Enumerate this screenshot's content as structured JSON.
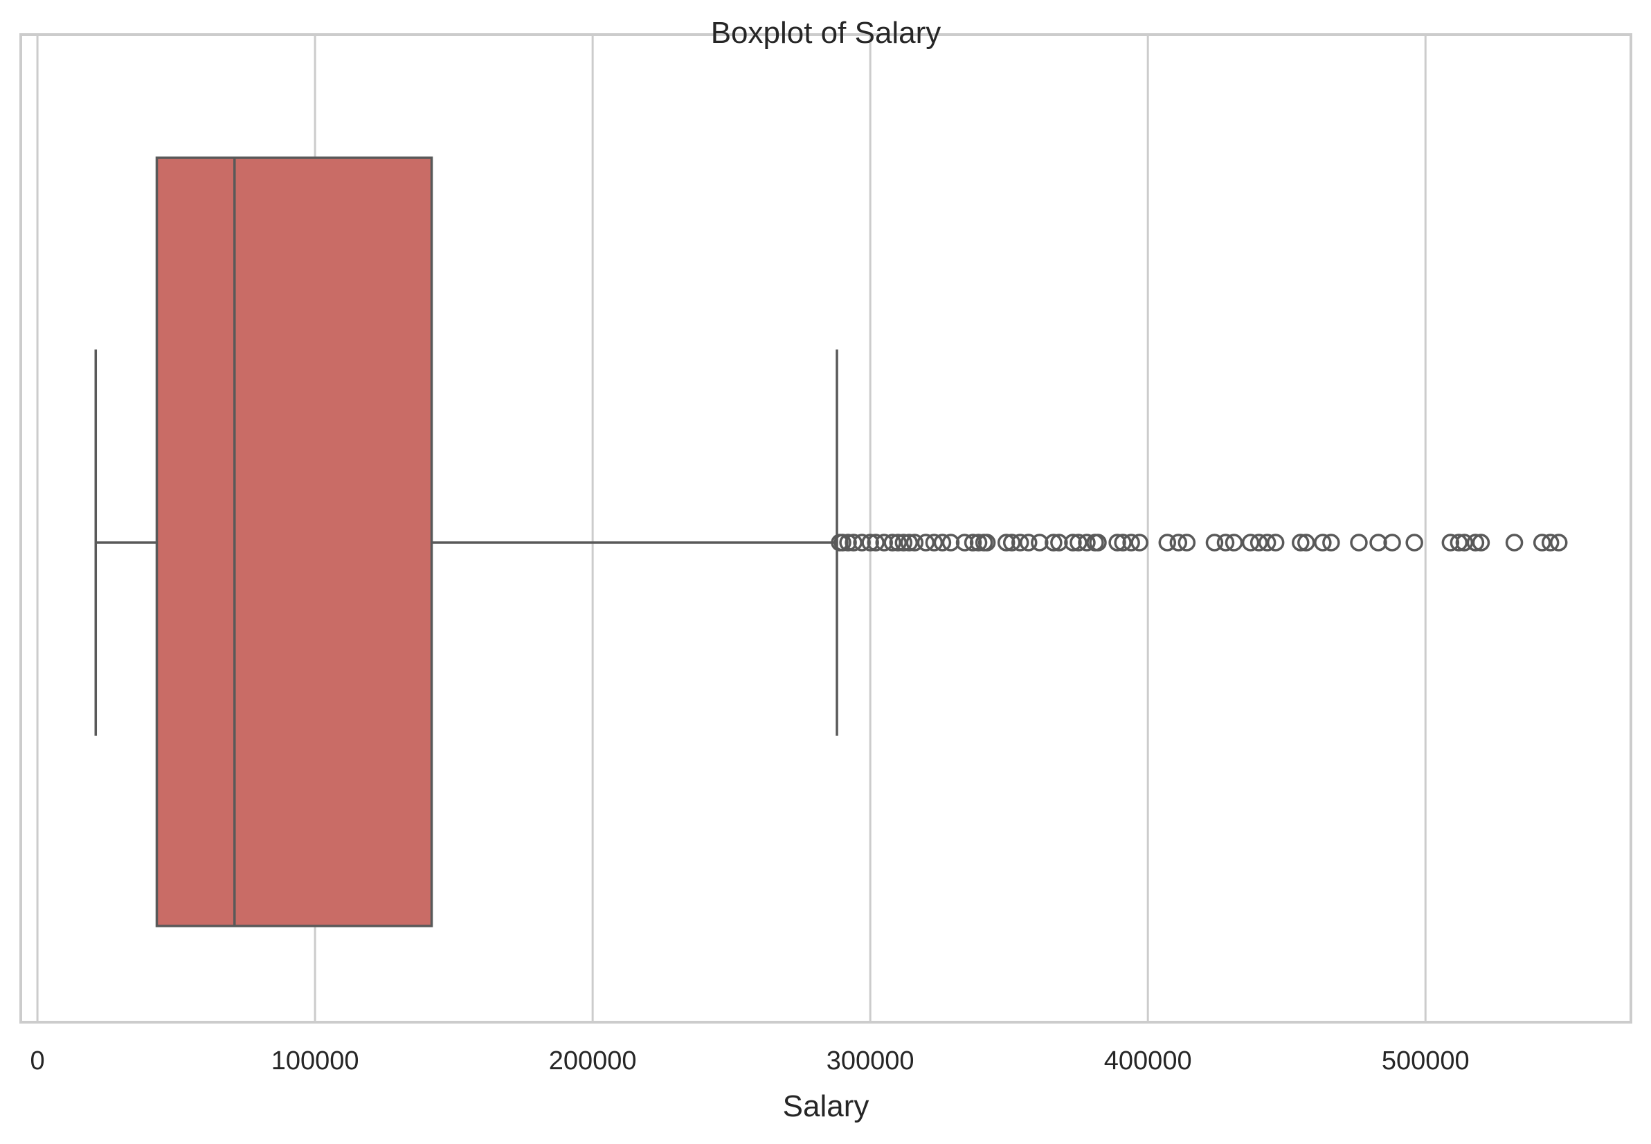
{
  "chart_data": {
    "type": "box",
    "title": "Boxplot of Salary",
    "xlabel": "Salary",
    "ylabel": "",
    "xlim": [
      -6000,
      574000
    ],
    "xticks": [
      0,
      100000,
      200000,
      300000,
      400000,
      500000
    ],
    "xtick_labels": [
      "0",
      "100000",
      "200000",
      "300000",
      "400000",
      "500000"
    ],
    "grid": true,
    "orientation": "horizontal",
    "box": {
      "whisker_low": 21000,
      "q1": 43000,
      "median": 71000,
      "q3": 142000,
      "whisker_high": 288000
    },
    "outliers": [
      289000,
      290000,
      292000,
      294000,
      297000,
      300000,
      302000,
      305000,
      308000,
      310000,
      312000,
      314000,
      316000,
      320000,
      323000,
      326000,
      329000,
      334000,
      337000,
      339000,
      341000,
      342000,
      349000,
      351000,
      354000,
      357000,
      361000,
      366000,
      368000,
      373000,
      375000,
      378000,
      381000,
      382000,
      389000,
      391000,
      394000,
      397000,
      407000,
      411000,
      414000,
      424000,
      428000,
      431000,
      437000,
      440000,
      443000,
      446000,
      455000,
      457000,
      463000,
      466000,
      476000,
      483000,
      488000,
      496000,
      509000,
      512000,
      514000,
      518000,
      520000,
      532000,
      542000,
      545000,
      548000
    ],
    "colors": {
      "box_fill": "#c96c66",
      "line": "#595959",
      "grid": "#cccccc",
      "frame": "#cccccc",
      "text": "#262626"
    }
  }
}
